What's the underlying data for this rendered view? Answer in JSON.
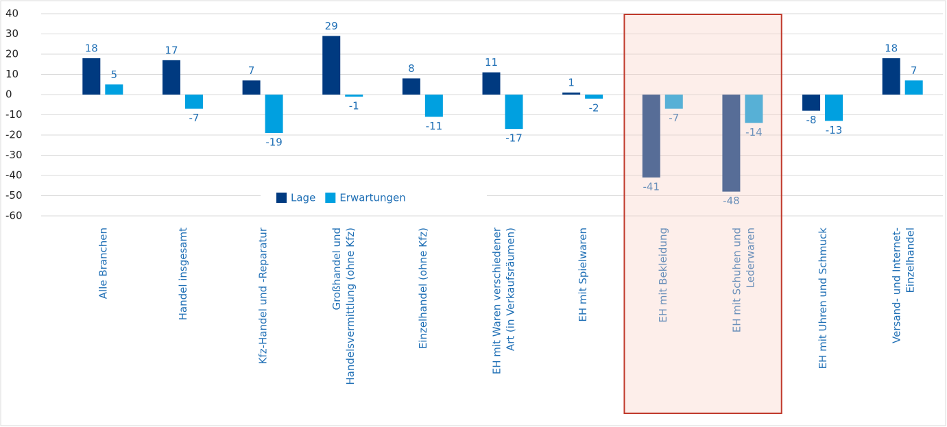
{
  "chart_data": {
    "type": "bar",
    "categories": [
      "Alle Branchen",
      "Handel insgesamt",
      "Kfz-Handel und -Reparatur",
      "Großhandel und\nHandelsvermittlung (ohne Kfz)",
      "Einzelhandel (ohne Kfz)",
      "EH mit Waren verschiedener\nArt (in Verkaufsräumen)",
      "EH mit Spielwaren",
      "EH mit Bekleidung",
      "EH mit Schuhen und\nLederwaren",
      "EH mit Uhren und Schmuck",
      "Versand- und Internet-\nEinzelhandel"
    ],
    "series": [
      {
        "name": "Lage",
        "color": "#003a80",
        "values": [
          18,
          17,
          7,
          29,
          8,
          11,
          1,
          -41,
          -48,
          -8,
          18
        ]
      },
      {
        "name": "Erwartungen",
        "color": "#00a0e0",
        "values": [
          5,
          -7,
          -19,
          -1,
          -11,
          -17,
          -2,
          -7,
          -14,
          -13,
          7
        ]
      }
    ],
    "ylim": [
      -60,
      40
    ],
    "yticks": [
      -60,
      -50,
      -40,
      -30,
      -20,
      -10,
      0,
      10,
      20,
      30,
      40
    ],
    "grid": true,
    "legend": "bottom-center"
  }
}
